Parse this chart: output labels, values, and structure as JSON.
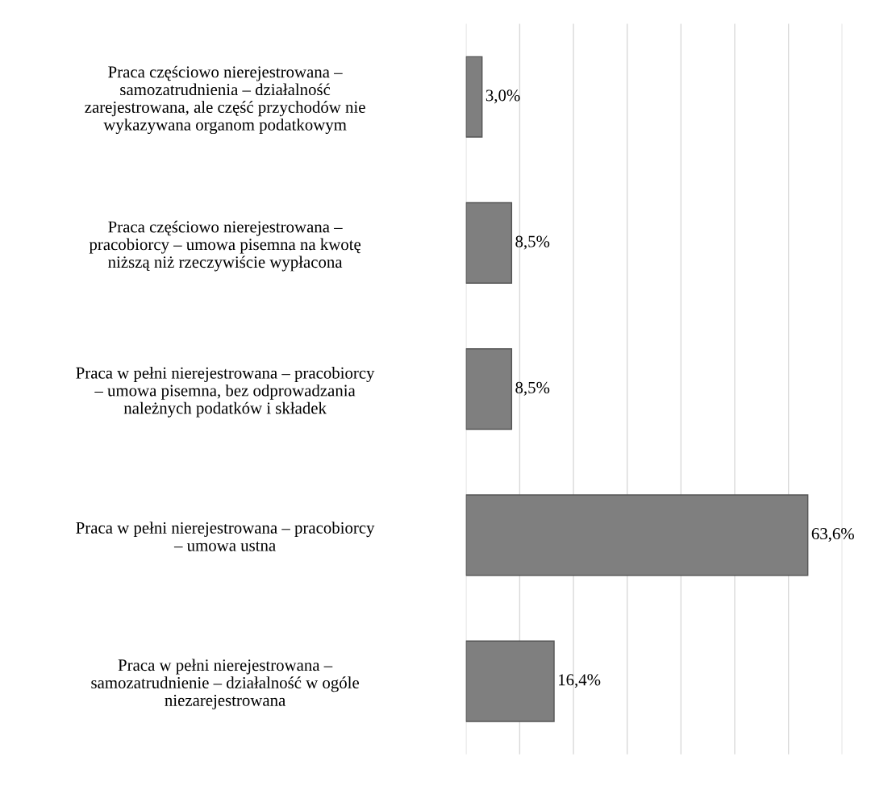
{
  "chart_data": {
    "type": "bar",
    "orientation": "horizontal",
    "categories": [
      "Praca częściowo nierejestrowana –\nsamozatrudnienia – działalność\nzarejestrowana, ale część przychodów nie\nwykazywana organom podatkowym",
      "Praca częściowo nierejestrowana –\npracobiorcy – umowa pisemna na kwotę\nniższą niż rzeczywiście wypłacona",
      "Praca w pełni nierejestrowana – pracobiorcy\n– umowa pisemna, bez odprowadzania\nnależnych podatków i składek",
      "Praca w pełni nierejestrowana – pracobiorcy\n– umowa ustna",
      "Praca w pełni nierejestrowana –\nsamozatrudnienie – działalność w ogóle\nniezarejestrowana"
    ],
    "values": [
      3.0,
      8.5,
      8.5,
      63.6,
      16.4
    ],
    "value_labels": [
      "3,0%",
      "8,5%",
      "8,5%",
      "63,6%",
      "16,4%"
    ],
    "color": "#7f7f7f",
    "xlim": [
      0,
      70
    ],
    "xticks": [
      {
        "value": 0,
        "label": null
      },
      {
        "value": 10,
        "label": null
      },
      {
        "value": 20,
        "label": null
      },
      {
        "value": 30,
        "label": null
      },
      {
        "value": 40,
        "label": null
      },
      {
        "value": 50,
        "label": null
      },
      {
        "value": 60,
        "label": null
      },
      {
        "value": 70,
        "label": null
      }
    ],
    "grid": "x",
    "tick_labels": "y"
  }
}
